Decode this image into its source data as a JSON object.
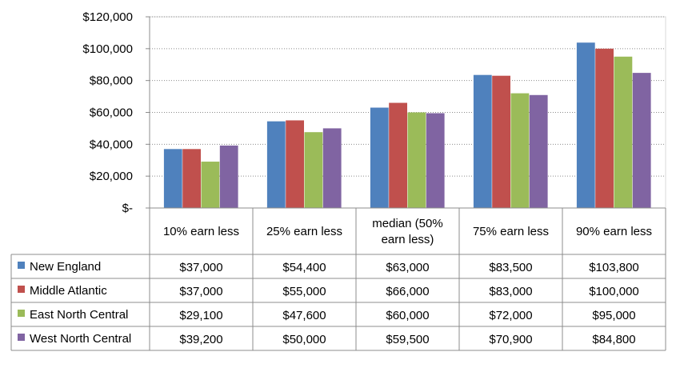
{
  "chart_data": {
    "type": "bar",
    "title": "",
    "xlabel": "",
    "ylabel": "",
    "ylim": [
      0,
      120000
    ],
    "grid": true,
    "legend": "data-table",
    "yticks": [
      {
        "value": 0,
        "label": "$-"
      },
      {
        "value": 20000,
        "label": "$20,000"
      },
      {
        "value": 40000,
        "label": "$40,000"
      },
      {
        "value": 60000,
        "label": "$60,000"
      },
      {
        "value": 80000,
        "label": "$80,000"
      },
      {
        "value": 100000,
        "label": "$100,000"
      },
      {
        "value": 120000,
        "label": "$120,000"
      }
    ],
    "categories": [
      [
        "10% earn less"
      ],
      [
        "25% earn less"
      ],
      [
        "median (50%",
        "earn less)"
      ],
      [
        "75% earn less"
      ],
      [
        "90% earn less"
      ]
    ],
    "series": [
      {
        "name": "New England",
        "color": "#4f81bd",
        "values": [
          37000,
          54400,
          63000,
          83500,
          103800
        ],
        "labels": [
          "$37,000",
          "$54,400",
          "$63,000",
          "$83,500",
          "$103,800"
        ]
      },
      {
        "name": "Middle Atlantic",
        "color": "#c0504d",
        "values": [
          37000,
          55000,
          66000,
          83000,
          100000
        ],
        "labels": [
          "$37,000",
          "$55,000",
          "$66,000",
          "$83,000",
          "$100,000"
        ]
      },
      {
        "name": "East North Central",
        "color": "#9bbb59",
        "values": [
          29100,
          47600,
          60000,
          72000,
          95000
        ],
        "labels": [
          "$29,100",
          "$47,600",
          "$60,000",
          "$72,000",
          "$95,000"
        ]
      },
      {
        "name": "West North Central",
        "color": "#8064a2",
        "values": [
          39200,
          50000,
          59500,
          70900,
          84800
        ],
        "labels": [
          "$39,200",
          "$50,000",
          "$59,500",
          "$70,900",
          "$84,800"
        ]
      }
    ]
  }
}
